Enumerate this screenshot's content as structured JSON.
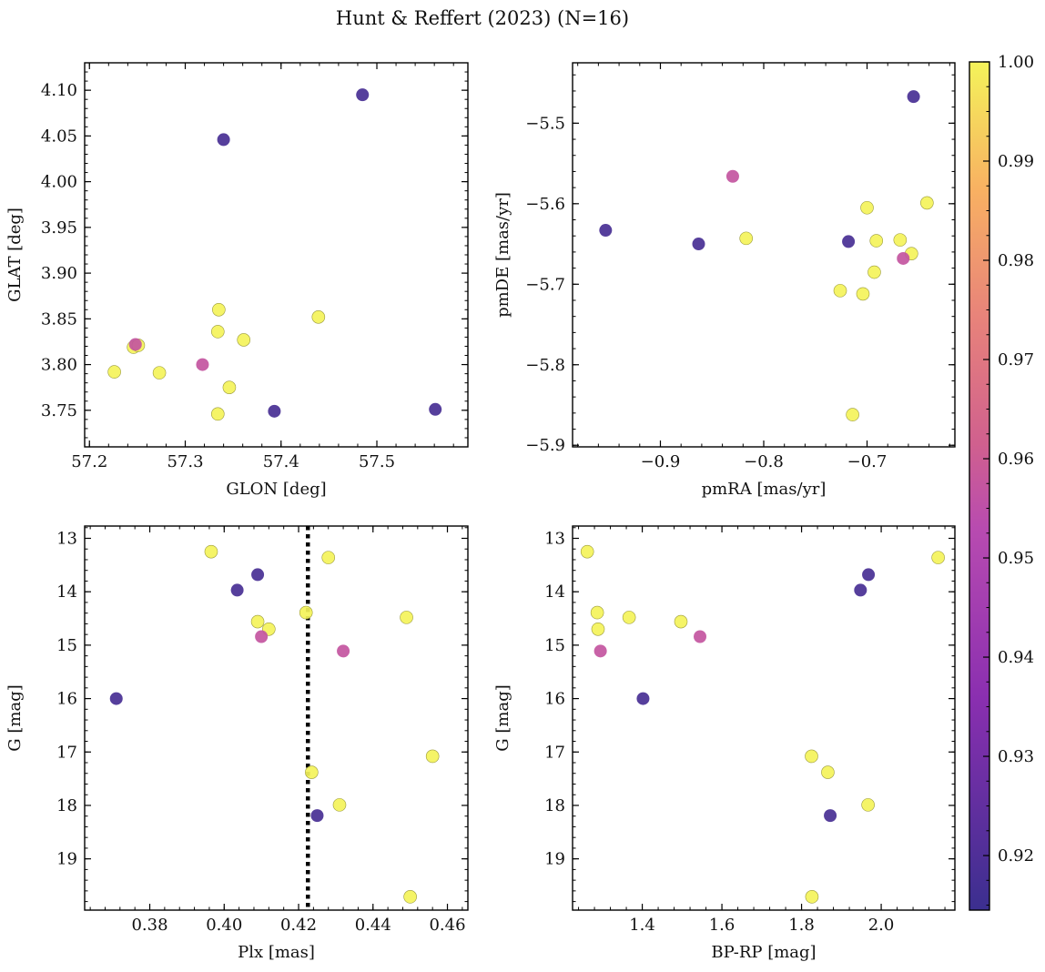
{
  "figure": {
    "title": "Hunt & Reffert (2023) (N=16)"
  },
  "colorbar": {
    "colormap": "plasma",
    "range": [
      0.9145,
      1.0
    ],
    "ticks": [
      0.92,
      0.93,
      0.94,
      0.95,
      0.96,
      0.97,
      0.98,
      0.99,
      1.0
    ],
    "tick_labels": [
      "0.92",
      "0.93",
      "0.94",
      "0.95",
      "0.96",
      "0.97",
      "0.98",
      "0.99",
      "1.00"
    ]
  },
  "chart_data": [
    {
      "type": "scatter",
      "id": "glon-glat",
      "xlabel": "GLON [deg]",
      "ylabel": "GLAT [deg]",
      "xlim": [
        57.195,
        57.595
      ],
      "ylim": [
        3.71,
        4.13
      ],
      "xticks": [
        57.2,
        57.3,
        57.4,
        57.5
      ],
      "xtick_labels": [
        "57.2",
        "57.3",
        "57.4",
        "57.5"
      ],
      "yticks": [
        3.75,
        3.8,
        3.85,
        3.9,
        3.95,
        4.0,
        4.05,
        4.1
      ],
      "ytick_labels": [
        "3.75",
        "3.80",
        "3.85",
        "3.90",
        "3.95",
        "4.00",
        "4.05",
        "4.10"
      ],
      "x": [
        57.34,
        57.485,
        57.393,
        57.561,
        57.318,
        57.248,
        57.335,
        57.439,
        57.334,
        57.361,
        57.226,
        57.246,
        57.251,
        57.273,
        57.346,
        57.334
      ],
      "y": [
        4.046,
        4.095,
        3.749,
        3.751,
        3.8,
        3.822,
        3.86,
        3.852,
        3.836,
        3.827,
        3.792,
        3.819,
        3.821,
        3.791,
        3.775,
        3.746
      ],
      "color_values": [
        0.918,
        0.918,
        0.918,
        0.918,
        0.957,
        0.957,
        1.0,
        1.0,
        1.0,
        1.0,
        1.0,
        1.0,
        1.0,
        1.0,
        1.0,
        1.0
      ]
    },
    {
      "type": "scatter",
      "id": "pmra-pmde",
      "xlabel": "pmRA [mas/yr]",
      "ylabel": "pmDE [mas/yr]",
      "xlim": [
        -0.985,
        -0.615
      ],
      "ylim": [
        -5.902,
        -5.425
      ],
      "xticks": [
        -0.9,
        -0.8,
        -0.7
      ],
      "xtick_labels": [
        "−0.9",
        "−0.8",
        "−0.7"
      ],
      "yticks": [
        -5.9,
        -5.8,
        -5.7,
        -5.6,
        -5.5
      ],
      "ytick_labels": [
        "−5.9",
        "−5.8",
        "−5.7",
        "−5.6",
        "−5.5"
      ],
      "x": [
        -0.953,
        -0.863,
        -0.718,
        -0.655,
        -0.83,
        -0.665,
        -0.817,
        -0.7,
        -0.642,
        -0.691,
        -0.668,
        -0.657,
        -0.693,
        -0.726,
        -0.704,
        -0.714
      ],
      "y": [
        -5.633,
        -5.65,
        -5.647,
        -5.467,
        -5.566,
        -5.668,
        -5.643,
        -5.605,
        -5.599,
        -5.646,
        -5.645,
        -5.662,
        -5.685,
        -5.708,
        -5.712,
        -5.862
      ],
      "color_values": [
        0.918,
        0.918,
        0.918,
        0.918,
        0.957,
        0.957,
        1.0,
        1.0,
        1.0,
        1.0,
        1.0,
        1.0,
        1.0,
        1.0,
        1.0,
        1.0
      ]
    },
    {
      "type": "scatter",
      "id": "plx-g",
      "xlabel": "Plx [mas]",
      "ylabel": "G [mag]",
      "xlim": [
        0.3625,
        0.4655
      ],
      "ylim": [
        19.96,
        12.77
      ],
      "y_inverted": true,
      "vline": {
        "x": 0.4225,
        "style": "dotted"
      },
      "xticks": [
        0.38,
        0.4,
        0.42,
        0.44,
        0.46
      ],
      "xtick_labels": [
        "0.38",
        "0.40",
        "0.42",
        "0.44",
        "0.46"
      ],
      "yticks": [
        13,
        14,
        15,
        16,
        17,
        18,
        19
      ],
      "ytick_labels": [
        "13",
        "14",
        "15",
        "16",
        "17",
        "18",
        "19"
      ],
      "x": [
        0.371,
        0.4035,
        0.409,
        0.425,
        0.41,
        0.432,
        0.3965,
        0.428,
        0.422,
        0.409,
        0.412,
        0.449,
        0.456,
        0.4235,
        0.431,
        0.45
      ],
      "y": [
        16.0,
        13.97,
        13.68,
        18.19,
        14.84,
        15.11,
        13.25,
        13.36,
        14.39,
        14.56,
        14.7,
        14.48,
        17.08,
        17.38,
        17.99,
        19.71
      ],
      "color_values": [
        0.918,
        0.918,
        0.918,
        0.918,
        0.957,
        0.957,
        1.0,
        1.0,
        1.0,
        1.0,
        1.0,
        1.0,
        1.0,
        1.0,
        1.0,
        1.0
      ]
    },
    {
      "type": "scatter",
      "id": "bprp-g",
      "xlabel": "BP-RP [mag]",
      "ylabel": "G [mag]",
      "xlim": [
        1.225,
        2.185
      ],
      "ylim": [
        19.96,
        12.77
      ],
      "y_inverted": true,
      "xticks": [
        1.4,
        1.6,
        1.8,
        2.0
      ],
      "xtick_labels": [
        "1.4",
        "1.6",
        "1.8",
        "2.0"
      ],
      "yticks": [
        13,
        14,
        15,
        16,
        17,
        18,
        19
      ],
      "ytick_labels": [
        "13",
        "14",
        "15",
        "16",
        "17",
        "18",
        "19"
      ],
      "x": [
        1.402,
        1.948,
        1.968,
        1.872,
        1.545,
        1.295,
        1.262,
        2.143,
        1.287,
        1.289,
        1.367,
        1.497,
        1.825,
        1.866,
        1.967,
        1.826
      ],
      "y": [
        16.0,
        13.97,
        13.68,
        18.19,
        14.84,
        15.11,
        13.25,
        13.36,
        14.39,
        14.7,
        14.48,
        14.56,
        17.08,
        17.38,
        17.99,
        19.71
      ],
      "color_values": [
        0.918,
        0.918,
        0.918,
        0.918,
        0.957,
        0.957,
        1.0,
        1.0,
        1.0,
        1.0,
        1.0,
        1.0,
        1.0,
        1.0,
        1.0,
        1.0
      ]
    }
  ]
}
